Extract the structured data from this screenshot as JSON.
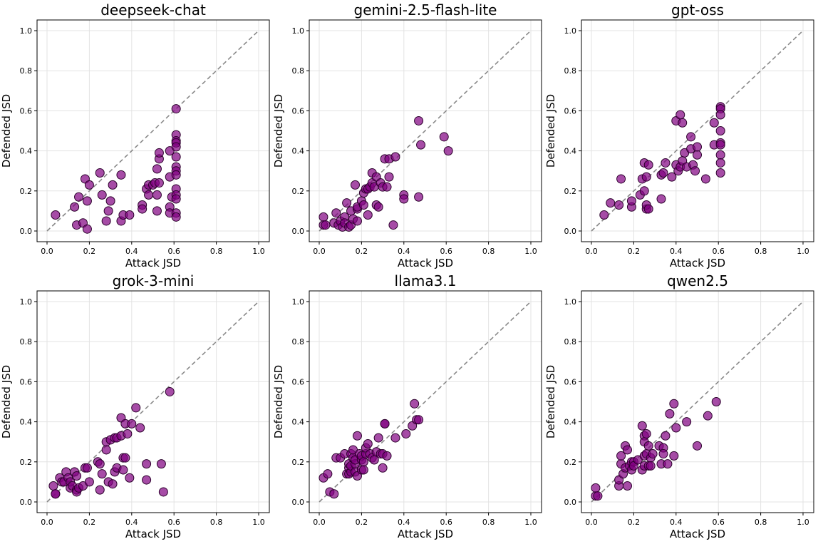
{
  "chart_data": [
    {
      "type": "scatter",
      "title": "deepseek-chat",
      "xlabel": "Attack JSD",
      "ylabel": "Defended JSD",
      "xlim": [
        0,
        1
      ],
      "ylim": [
        0,
        1
      ],
      "ticks": [
        "0.0",
        "0.2",
        "0.4",
        "0.6",
        "0.8",
        "1.0"
      ],
      "reference_line": "y = x",
      "color": "#800080",
      "points": [
        [
          0.04,
          0.08
        ],
        [
          0.13,
          0.12
        ],
        [
          0.14,
          0.03
        ],
        [
          0.15,
          0.17
        ],
        [
          0.17,
          0.04
        ],
        [
          0.18,
          0.26
        ],
        [
          0.19,
          0.01
        ],
        [
          0.19,
          0.15
        ],
        [
          0.2,
          0.23
        ],
        [
          0.25,
          0.29
        ],
        [
          0.26,
          0.18
        ],
        [
          0.28,
          0.05
        ],
        [
          0.29,
          0.1
        ],
        [
          0.3,
          0.15
        ],
        [
          0.31,
          0.23
        ],
        [
          0.35,
          0.28
        ],
        [
          0.35,
          0.05
        ],
        [
          0.36,
          0.08
        ],
        [
          0.39,
          0.08
        ],
        [
          0.45,
          0.13
        ],
        [
          0.45,
          0.11
        ],
        [
          0.47,
          0.21
        ],
        [
          0.48,
          0.23
        ],
        [
          0.48,
          0.18
        ],
        [
          0.5,
          0.23
        ],
        [
          0.51,
          0.24
        ],
        [
          0.52,
          0.1
        ],
        [
          0.52,
          0.18
        ],
        [
          0.53,
          0.24
        ],
        [
          0.52,
          0.31
        ],
        [
          0.53,
          0.36
        ],
        [
          0.53,
          0.39
        ],
        [
          0.58,
          0.27
        ],
        [
          0.58,
          0.12
        ],
        [
          0.58,
          0.09
        ],
        [
          0.59,
          0.17
        ],
        [
          0.58,
          0.4
        ],
        [
          0.61,
          0.61
        ],
        [
          0.61,
          0.48
        ],
        [
          0.61,
          0.45
        ],
        [
          0.61,
          0.44
        ],
        [
          0.61,
          0.42
        ],
        [
          0.61,
          0.37
        ],
        [
          0.61,
          0.32
        ],
        [
          0.61,
          0.3
        ],
        [
          0.61,
          0.28
        ],
        [
          0.61,
          0.21
        ],
        [
          0.61,
          0.18
        ],
        [
          0.61,
          0.16
        ],
        [
          0.61,
          0.09
        ],
        [
          0.61,
          0.07
        ]
      ]
    },
    {
      "type": "scatter",
      "title": "gemini-2.5-flash-lite",
      "xlabel": "Attack JSD",
      "ylabel": "Defended JSD",
      "xlim": [
        0,
        1
      ],
      "ylim": [
        0,
        1
      ],
      "ticks": [
        "0.0",
        "0.2",
        "0.4",
        "0.6",
        "0.8",
        "1.0"
      ],
      "reference_line": "y = x",
      "color": "#800080",
      "points": [
        [
          0.02,
          0.07
        ],
        [
          0.02,
          0.03
        ],
        [
          0.03,
          0.03
        ],
        [
          0.07,
          0.04
        ],
        [
          0.08,
          0.09
        ],
        [
          0.09,
          0.03
        ],
        [
          0.1,
          0.05
        ],
        [
          0.11,
          0.02
        ],
        [
          0.12,
          0.07
        ],
        [
          0.12,
          0.04
        ],
        [
          0.13,
          0.14
        ],
        [
          0.14,
          0.02
        ],
        [
          0.15,
          0.03
        ],
        [
          0.15,
          0.1
        ],
        [
          0.16,
          0.06
        ],
        [
          0.17,
          0.23
        ],
        [
          0.18,
          0.05
        ],
        [
          0.18,
          0.11
        ],
        [
          0.18,
          0.12
        ],
        [
          0.2,
          0.15
        ],
        [
          0.21,
          0.13
        ],
        [
          0.21,
          0.19
        ],
        [
          0.22,
          0.21
        ],
        [
          0.23,
          0.08
        ],
        [
          0.23,
          0.21
        ],
        [
          0.24,
          0.22
        ],
        [
          0.25,
          0.29
        ],
        [
          0.25,
          0.24
        ],
        [
          0.26,
          0.22
        ],
        [
          0.27,
          0.13
        ],
        [
          0.27,
          0.27
        ],
        [
          0.28,
          0.12
        ],
        [
          0.29,
          0.24
        ],
        [
          0.3,
          0.22
        ],
        [
          0.31,
          0.36
        ],
        [
          0.32,
          0.22
        ],
        [
          0.33,
          0.27
        ],
        [
          0.33,
          0.36
        ],
        [
          0.35,
          0.03
        ],
        [
          0.36,
          0.37
        ],
        [
          0.4,
          0.18
        ],
        [
          0.4,
          0.16
        ],
        [
          0.47,
          0.17
        ],
        [
          0.47,
          0.55
        ],
        [
          0.48,
          0.43
        ],
        [
          0.59,
          0.47
        ],
        [
          0.61,
          0.4
        ]
      ]
    },
    {
      "type": "scatter",
      "title": "gpt-oss",
      "xlabel": "Attack JSD",
      "ylabel": "Defended JSD",
      "xlim": [
        0,
        1
      ],
      "ylim": [
        0,
        1
      ],
      "ticks": [
        "0.0",
        "0.2",
        "0.4",
        "0.6",
        "0.8",
        "1.0"
      ],
      "reference_line": "y = x",
      "color": "#800080",
      "points": [
        [
          0.06,
          0.08
        ],
        [
          0.09,
          0.14
        ],
        [
          0.13,
          0.13
        ],
        [
          0.14,
          0.26
        ],
        [
          0.19,
          0.12
        ],
        [
          0.19,
          0.15
        ],
        [
          0.23,
          0.18
        ],
        [
          0.24,
          0.26
        ],
        [
          0.25,
          0.2
        ],
        [
          0.25,
          0.34
        ],
        [
          0.26,
          0.11
        ],
        [
          0.26,
          0.27
        ],
        [
          0.26,
          0.13
        ],
        [
          0.27,
          0.11
        ],
        [
          0.27,
          0.33
        ],
        [
          0.33,
          0.16
        ],
        [
          0.33,
          0.28
        ],
        [
          0.34,
          0.29
        ],
        [
          0.35,
          0.34
        ],
        [
          0.38,
          0.27
        ],
        [
          0.4,
          0.55
        ],
        [
          0.4,
          0.33
        ],
        [
          0.41,
          0.3
        ],
        [
          0.42,
          0.32
        ],
        [
          0.42,
          0.58
        ],
        [
          0.43,
          0.54
        ],
        [
          0.43,
          0.35
        ],
        [
          0.44,
          0.39
        ],
        [
          0.45,
          0.32
        ],
        [
          0.47,
          0.41
        ],
        [
          0.47,
          0.47
        ],
        [
          0.48,
          0.33
        ],
        [
          0.49,
          0.3
        ],
        [
          0.5,
          0.38
        ],
        [
          0.5,
          0.42
        ],
        [
          0.54,
          0.26
        ],
        [
          0.58,
          0.43
        ],
        [
          0.58,
          0.54
        ],
        [
          0.61,
          0.62
        ],
        [
          0.61,
          0.61
        ],
        [
          0.61,
          0.58
        ],
        [
          0.61,
          0.5
        ],
        [
          0.61,
          0.44
        ],
        [
          0.61,
          0.43
        ],
        [
          0.61,
          0.38
        ],
        [
          0.61,
          0.34
        ],
        [
          0.61,
          0.29
        ]
      ]
    },
    {
      "type": "scatter",
      "title": "grok-3-mini",
      "xlabel": "Attack JSD",
      "ylabel": "Defended JSD",
      "xlim": [
        0,
        1
      ],
      "ylim": [
        0,
        1
      ],
      "ticks": [
        "0.0",
        "0.2",
        "0.4",
        "0.6",
        "0.8",
        "1.0"
      ],
      "reference_line": "y = x",
      "color": "#800080",
      "points": [
        [
          0.03,
          0.08
        ],
        [
          0.04,
          0.04
        ],
        [
          0.04,
          0.04
        ],
        [
          0.06,
          0.12
        ],
        [
          0.07,
          0.1
        ],
        [
          0.08,
          0.1
        ],
        [
          0.09,
          0.15
        ],
        [
          0.1,
          0.12
        ],
        [
          0.11,
          0.07
        ],
        [
          0.11,
          0.1
        ],
        [
          0.12,
          0.08
        ],
        [
          0.13,
          0.15
        ],
        [
          0.14,
          0.13
        ],
        [
          0.14,
          0.06
        ],
        [
          0.14,
          0.05
        ],
        [
          0.15,
          0.07
        ],
        [
          0.17,
          0.08
        ],
        [
          0.18,
          0.17
        ],
        [
          0.19,
          0.17
        ],
        [
          0.2,
          0.1
        ],
        [
          0.24,
          0.2
        ],
        [
          0.25,
          0.19
        ],
        [
          0.25,
          0.06
        ],
        [
          0.26,
          0.14
        ],
        [
          0.28,
          0.26
        ],
        [
          0.28,
          0.3
        ],
        [
          0.29,
          0.1
        ],
        [
          0.3,
          0.31
        ],
        [
          0.31,
          0.09
        ],
        [
          0.32,
          0.32
        ],
        [
          0.32,
          0.15
        ],
        [
          0.33,
          0.17
        ],
        [
          0.33,
          0.32
        ],
        [
          0.35,
          0.33
        ],
        [
          0.35,
          0.42
        ],
        [
          0.36,
          0.16
        ],
        [
          0.36,
          0.22
        ],
        [
          0.37,
          0.22
        ],
        [
          0.37,
          0.39
        ],
        [
          0.38,
          0.34
        ],
        [
          0.39,
          0.12
        ],
        [
          0.4,
          0.39
        ],
        [
          0.42,
          0.47
        ],
        [
          0.44,
          0.37
        ],
        [
          0.47,
          0.11
        ],
        [
          0.47,
          0.19
        ],
        [
          0.54,
          0.19
        ],
        [
          0.55,
          0.05
        ],
        [
          0.58,
          0.55
        ]
      ]
    },
    {
      "type": "scatter",
      "title": "llama3.1",
      "xlabel": "Attack JSD",
      "ylabel": "Defended JSD",
      "xlim": [
        0,
        1
      ],
      "ylim": [
        0,
        1
      ],
      "ticks": [
        "0.0",
        "0.2",
        "0.4",
        "0.6",
        "0.8",
        "1.0"
      ],
      "reference_line": "y = x",
      "color": "#800080",
      "points": [
        [
          0.02,
          0.12
        ],
        [
          0.04,
          0.14
        ],
        [
          0.05,
          0.05
        ],
        [
          0.07,
          0.04
        ],
        [
          0.08,
          0.22
        ],
        [
          0.1,
          0.22
        ],
        [
          0.12,
          0.24
        ],
        [
          0.13,
          0.14
        ],
        [
          0.14,
          0.14
        ],
        [
          0.14,
          0.17
        ],
        [
          0.14,
          0.19
        ],
        [
          0.15,
          0.15
        ],
        [
          0.15,
          0.18
        ],
        [
          0.15,
          0.24
        ],
        [
          0.16,
          0.22
        ],
        [
          0.16,
          0.26
        ],
        [
          0.17,
          0.15
        ],
        [
          0.17,
          0.19
        ],
        [
          0.17,
          0.21
        ],
        [
          0.18,
          0.13
        ],
        [
          0.18,
          0.33
        ],
        [
          0.19,
          0.24
        ],
        [
          0.2,
          0.21
        ],
        [
          0.2,
          0.23
        ],
        [
          0.2,
          0.16
        ],
        [
          0.21,
          0.2
        ],
        [
          0.21,
          0.16
        ],
        [
          0.22,
          0.24
        ],
        [
          0.22,
          0.27
        ],
        [
          0.23,
          0.29
        ],
        [
          0.24,
          0.24
        ],
        [
          0.25,
          0.22
        ],
        [
          0.26,
          0.21
        ],
        [
          0.27,
          0.25
        ],
        [
          0.28,
          0.32
        ],
        [
          0.29,
          0.24
        ],
        [
          0.3,
          0.24
        ],
        [
          0.3,
          0.17
        ],
        [
          0.31,
          0.39
        ],
        [
          0.31,
          0.39
        ],
        [
          0.32,
          0.23
        ],
        [
          0.36,
          0.32
        ],
        [
          0.41,
          0.34
        ],
        [
          0.44,
          0.38
        ],
        [
          0.45,
          0.49
        ],
        [
          0.46,
          0.41
        ],
        [
          0.47,
          0.41
        ]
      ]
    },
    {
      "type": "scatter",
      "title": "qwen2.5",
      "xlabel": "Attack JSD",
      "ylabel": "Defended JSD",
      "xlim": [
        0,
        1
      ],
      "ylim": [
        0,
        1
      ],
      "ticks": [
        "0.0",
        "0.2",
        "0.4",
        "0.6",
        "0.8",
        "1.0"
      ],
      "reference_line": "y = x",
      "color": "#800080",
      "points": [
        [
          0.02,
          0.03
        ],
        [
          0.02,
          0.07
        ],
        [
          0.03,
          0.03
        ],
        [
          0.13,
          0.08
        ],
        [
          0.13,
          0.11
        ],
        [
          0.14,
          0.19
        ],
        [
          0.14,
          0.23
        ],
        [
          0.15,
          0.14
        ],
        [
          0.16,
          0.17
        ],
        [
          0.16,
          0.28
        ],
        [
          0.17,
          0.26
        ],
        [
          0.17,
          0.08
        ],
        [
          0.18,
          0.18
        ],
        [
          0.19,
          0.2
        ],
        [
          0.19,
          0.16
        ],
        [
          0.2,
          0.2
        ],
        [
          0.2,
          0.18
        ],
        [
          0.22,
          0.21
        ],
        [
          0.24,
          0.16
        ],
        [
          0.24,
          0.38
        ],
        [
          0.25,
          0.18
        ],
        [
          0.25,
          0.23
        ],
        [
          0.25,
          0.33
        ],
        [
          0.25,
          0.3
        ],
        [
          0.26,
          0.34
        ],
        [
          0.26,
          0.24
        ],
        [
          0.27,
          0.28
        ],
        [
          0.27,
          0.18
        ],
        [
          0.28,
          0.22
        ],
        [
          0.28,
          0.18
        ],
        [
          0.29,
          0.24
        ],
        [
          0.32,
          0.28
        ],
        [
          0.33,
          0.19
        ],
        [
          0.34,
          0.27
        ],
        [
          0.34,
          0.24
        ],
        [
          0.35,
          0.33
        ],
        [
          0.36,
          0.19
        ],
        [
          0.37,
          0.44
        ],
        [
          0.39,
          0.23
        ],
        [
          0.39,
          0.49
        ],
        [
          0.4,
          0.37
        ],
        [
          0.45,
          0.4
        ],
        [
          0.5,
          0.28
        ],
        [
          0.55,
          0.43
        ],
        [
          0.59,
          0.5
        ]
      ]
    }
  ]
}
